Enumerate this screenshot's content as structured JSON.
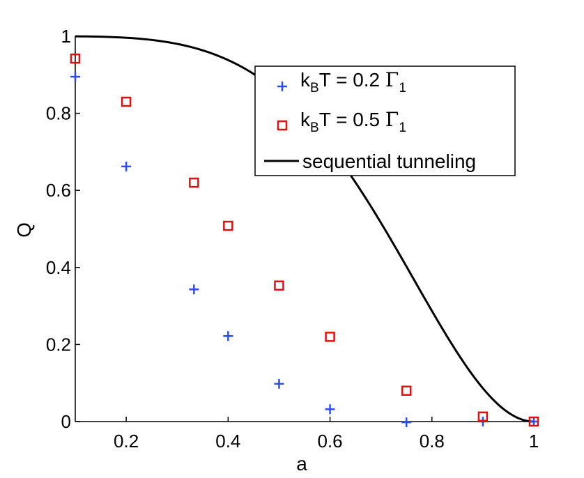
{
  "chart_data": {
    "type": "scatter",
    "title": "",
    "xlabel": "a",
    "ylabel": "Q",
    "xlim": [
      0.1,
      1.0
    ],
    "ylim": [
      0,
      1
    ],
    "x_ticks": [
      0.2,
      0.4,
      0.6,
      0.8,
      1.0
    ],
    "x_tick_labels": [
      "0.2",
      "0.4",
      "0.6",
      "0.8",
      "1"
    ],
    "y_ticks": [
      0,
      0.2,
      0.4,
      0.6,
      0.8,
      1.0
    ],
    "y_tick_labels": [
      "0",
      "0.2",
      "0.4",
      "0.6",
      "0.8",
      "1"
    ],
    "grid": false,
    "legend_position": "top-right",
    "series": [
      {
        "name": "kBT = 0.2 Γ1",
        "legend_main": "k",
        "legend_sub1": "B",
        "legend_mid": "T = 0.2 ",
        "legend_greek": "Γ",
        "legend_sub2": "1",
        "marker": "plus",
        "color": "#2a4cf0",
        "x": [
          0.1,
          0.2,
          0.333,
          0.4,
          0.5,
          0.6,
          0.75,
          0.9,
          1.0
        ],
        "y": [
          0.895,
          0.662,
          0.343,
          0.222,
          0.098,
          0.032,
          -0.002,
          0.0,
          0.0
        ]
      },
      {
        "name": "kBT = 0.5 Γ1",
        "legend_main": "k",
        "legend_sub1": "B",
        "legend_mid": "T = 0.5 ",
        "legend_greek": "Γ",
        "legend_sub2": "1",
        "marker": "square",
        "color": "#e01010",
        "x": [
          0.1,
          0.2,
          0.333,
          0.4,
          0.5,
          0.6,
          0.75,
          0.9,
          1.0
        ],
        "y": [
          0.942,
          0.83,
          0.62,
          0.508,
          0.353,
          0.22,
          0.08,
          0.013,
          0.0
        ]
      },
      {
        "name": "sequential tunneling",
        "legend_main": "sequential tunneling",
        "marker": "line",
        "color": "#000000",
        "curve": "cos2_half_pi_a_squared"
      }
    ]
  }
}
